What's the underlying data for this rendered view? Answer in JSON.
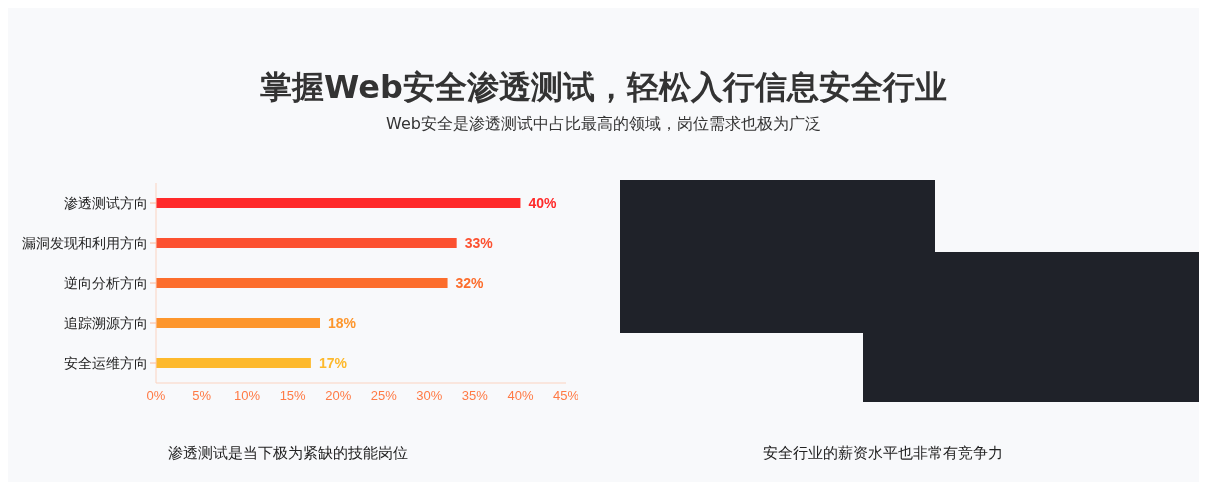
{
  "chart_data": {
    "type": "bar",
    "orientation": "horizontal",
    "title": "掌握Web安全渗透测试，轻松入行信息安全行业",
    "subtitle": "Web安全是渗透测试中占比最高的领域，岗位需求也极为广泛",
    "categories": [
      "渗透测试方向",
      "漏洞发现和利用方向",
      "逆向分析方向",
      "追踪溯源方向",
      "安全运维方向"
    ],
    "values": [
      40,
      33,
      32,
      18,
      17
    ],
    "colors": [
      "#ff2a2a",
      "#fc5130",
      "#fc6d2c",
      "#fd962c",
      "#fdb92c"
    ],
    "value_labels": [
      "40%",
      "33%",
      "32%",
      "18%",
      "17%"
    ],
    "xlim": [
      0,
      45
    ],
    "xticks": [
      {
        "value": 0,
        "label": "0%"
      },
      {
        "value": 5,
        "label": "5%"
      },
      {
        "value": 10,
        "label": "10%"
      },
      {
        "value": 15,
        "label": "15%"
      },
      {
        "value": 20,
        "label": "20%"
      },
      {
        "value": 25,
        "label": "25%"
      },
      {
        "value": 30,
        "label": "30%"
      },
      {
        "value": 35,
        "label": "35%"
      },
      {
        "value": 40,
        "label": "40%"
      },
      {
        "value": 45,
        "label": "45%"
      }
    ],
    "grid": false,
    "annotations": [
      "渗透测试是当下极为紧缺的技能岗位",
      "安全行业的薪资水平也非常有竞争力"
    ]
  }
}
